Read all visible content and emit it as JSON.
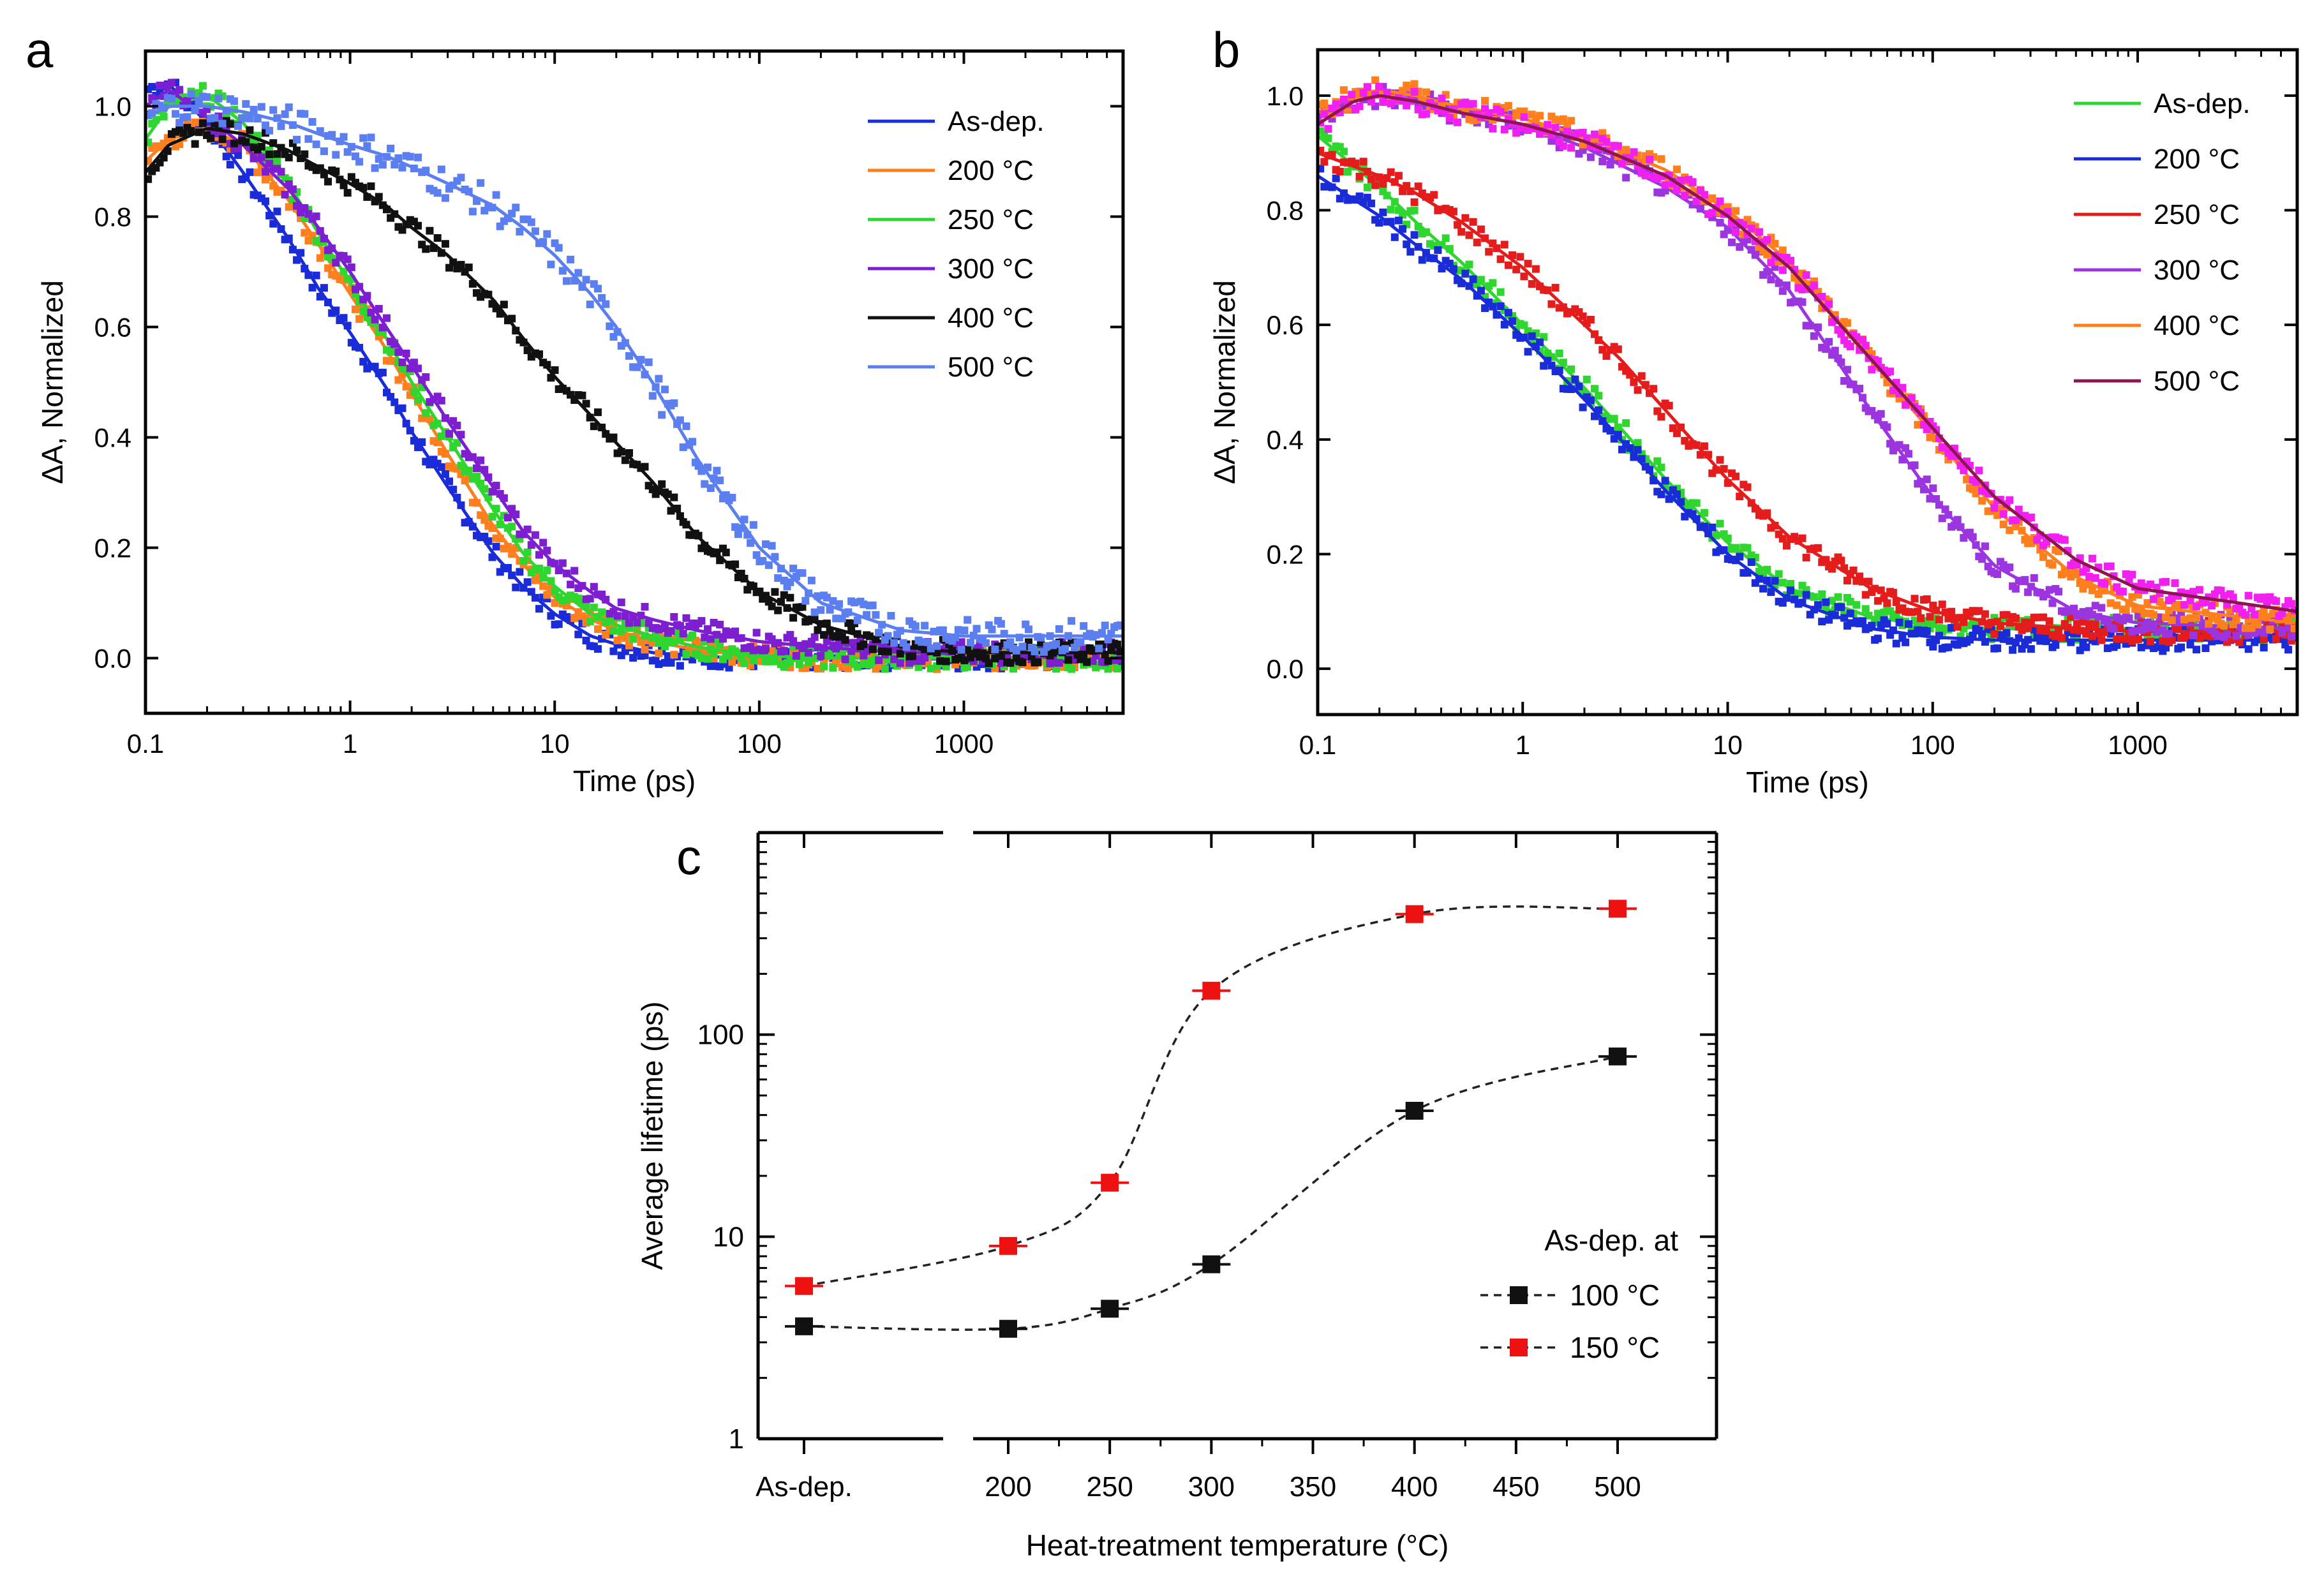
{
  "panels": {
    "a": "a",
    "b": "b",
    "c": "c"
  },
  "colors": {
    "blue": "#1a2bd8",
    "orange": "#ff7f1e",
    "green": "#2fd62f",
    "purple": "#7d1ed0",
    "black": "#111111",
    "lightblue": "#5b7ff0",
    "red": "#e51c1c",
    "violet": "#9b35e0",
    "maroon": "#8e1650",
    "magenta": "#f020f0",
    "square_black": "#111111",
    "square_red": "#ee1111"
  },
  "chart_data": [
    {
      "id": "a",
      "type": "line",
      "xscale": "log",
      "xlabel": "Time (ps)",
      "ylabel": "ΔA, Normalized",
      "xlim": [
        0.1,
        6000
      ],
      "ylim": [
        -0.1,
        1.1
      ],
      "xticks": [
        "0.1",
        "1",
        "10",
        "100",
        "1000"
      ],
      "yticks": [
        "0.0",
        "0.2",
        "0.4",
        "0.6",
        "0.8",
        "1.0"
      ],
      "legend": [
        "As-dep.",
        "200 °C",
        "250 °C",
        "300 °C",
        "400 °C",
        "500 °C"
      ],
      "series": [
        {
          "name": "As-dep.",
          "color": "blue",
          "t": [
            0.1,
            0.13,
            0.2,
            0.3,
            0.5,
            0.7,
            1,
            1.5,
            2,
            3,
            5,
            7,
            10,
            15,
            20,
            30,
            50,
            100,
            200,
            500,
            1000,
            6000
          ],
          "fit": [
            1.03,
            1.04,
            0.97,
            0.88,
            0.76,
            0.67,
            0.59,
            0.49,
            0.41,
            0.31,
            0.19,
            0.13,
            0.08,
            0.04,
            0.025,
            0.01,
            0.003,
            0,
            0,
            0,
            0,
            0
          ],
          "noise": 0.02
        },
        {
          "name": "200 °C",
          "color": "orange",
          "t": [
            0.1,
            0.13,
            0.2,
            0.3,
            0.5,
            0.7,
            1,
            1.5,
            2,
            3,
            5,
            7,
            10,
            15,
            20,
            30,
            50,
            100,
            200,
            500,
            1000,
            6000
          ],
          "fit": [
            0.9,
            0.94,
            0.96,
            0.93,
            0.83,
            0.75,
            0.66,
            0.56,
            0.48,
            0.37,
            0.24,
            0.17,
            0.11,
            0.07,
            0.05,
            0.03,
            0.015,
            0.005,
            0,
            0,
            0,
            0
          ],
          "noise": 0.02
        },
        {
          "name": "250 °C",
          "color": "green",
          "t": [
            0.1,
            0.13,
            0.2,
            0.3,
            0.5,
            0.7,
            1,
            1.5,
            2,
            3,
            5,
            7,
            10,
            15,
            20,
            30,
            50,
            100,
            200,
            500,
            1000,
            6000
          ],
          "fit": [
            0.94,
            1.0,
            1.02,
            0.97,
            0.86,
            0.77,
            0.68,
            0.58,
            0.5,
            0.4,
            0.27,
            0.19,
            0.13,
            0.08,
            0.06,
            0.04,
            0.02,
            0.005,
            0,
            0,
            0,
            0
          ],
          "noise": 0.02
        },
        {
          "name": "300 °C",
          "color": "purple",
          "t": [
            0.1,
            0.13,
            0.2,
            0.3,
            0.5,
            0.7,
            1,
            1.5,
            2,
            3,
            5,
            7,
            10,
            15,
            20,
            30,
            50,
            100,
            200,
            500,
            1000,
            6000
          ],
          "fit": [
            1.0,
            1.03,
            0.98,
            0.93,
            0.85,
            0.78,
            0.7,
            0.6,
            0.53,
            0.43,
            0.31,
            0.23,
            0.17,
            0.12,
            0.09,
            0.07,
            0.05,
            0.03,
            0.02,
            0.01,
            0.01,
            0.01
          ],
          "noise": 0.02
        },
        {
          "name": "400 °C",
          "color": "black",
          "t": [
            0.1,
            0.13,
            0.2,
            0.3,
            0.5,
            0.7,
            1,
            1.5,
            2,
            3,
            5,
            7,
            10,
            15,
            20,
            30,
            50,
            100,
            200,
            500,
            1000,
            6000
          ],
          "fit": [
            0.88,
            0.93,
            0.96,
            0.95,
            0.92,
            0.89,
            0.86,
            0.82,
            0.78,
            0.73,
            0.65,
            0.58,
            0.51,
            0.44,
            0.39,
            0.32,
            0.22,
            0.12,
            0.06,
            0.02,
            0.01,
            0.01
          ],
          "noise": 0.02
        },
        {
          "name": "500 °C",
          "color": "lightblue",
          "t": [
            0.1,
            0.13,
            0.2,
            0.3,
            0.5,
            0.7,
            1,
            1.5,
            2,
            3,
            5,
            7,
            10,
            15,
            20,
            30,
            50,
            100,
            200,
            500,
            1000,
            6000
          ],
          "fit": [
            0.98,
            1.0,
            1.0,
            0.99,
            0.97,
            0.95,
            0.93,
            0.91,
            0.89,
            0.86,
            0.82,
            0.78,
            0.73,
            0.66,
            0.6,
            0.5,
            0.36,
            0.2,
            0.1,
            0.05,
            0.04,
            0.04
          ],
          "noise": 0.03
        }
      ]
    },
    {
      "id": "b",
      "type": "line",
      "xscale": "log",
      "xlabel": "Time (ps)",
      "ylabel": "ΔA, Normalized",
      "xlim": [
        0.1,
        6000
      ],
      "ylim": [
        -0.08,
        1.08
      ],
      "xticks": [
        "0.1",
        "1",
        "10",
        "100",
        "1000"
      ],
      "yticks": [
        "0.0",
        "0.2",
        "0.4",
        "0.6",
        "0.8",
        "1.0"
      ],
      "legend": [
        "As-dep.",
        "200 °C",
        "250 °C",
        "300 °C",
        "400 °C",
        "500 °C"
      ],
      "series": [
        {
          "name": "As-dep.",
          "color": "green",
          "t": [
            0.1,
            0.2,
            0.3,
            0.5,
            1,
            2,
            3,
            5,
            10,
            20,
            50,
            100,
            200,
            500,
            1000,
            6000
          ],
          "fit": [
            0.93,
            0.84,
            0.78,
            0.71,
            0.6,
            0.49,
            0.42,
            0.33,
            0.22,
            0.14,
            0.09,
            0.075,
            0.07,
            0.07,
            0.07,
            0.07
          ],
          "noise": 0.02
        },
        {
          "name": "200 °C",
          "color": "blue",
          "t": [
            0.1,
            0.2,
            0.3,
            0.5,
            1,
            2,
            3,
            5,
            10,
            20,
            50,
            100,
            200,
            500,
            1000,
            6000
          ],
          "fit": [
            0.86,
            0.79,
            0.74,
            0.68,
            0.58,
            0.47,
            0.4,
            0.31,
            0.2,
            0.12,
            0.07,
            0.055,
            0.05,
            0.05,
            0.05,
            0.05
          ],
          "noise": 0.02
        },
        {
          "name": "250 °C",
          "color": "red",
          "t": [
            0.1,
            0.2,
            0.3,
            0.5,
            1,
            2,
            3,
            5,
            10,
            20,
            50,
            100,
            200,
            500,
            1000,
            6000
          ],
          "fit": [
            0.9,
            0.86,
            0.83,
            0.78,
            0.7,
            0.6,
            0.54,
            0.45,
            0.33,
            0.23,
            0.14,
            0.1,
            0.08,
            0.07,
            0.065,
            0.065
          ],
          "noise": 0.02
        },
        {
          "name": "300 °C",
          "color": "violet",
          "t": [
            0.1,
            0.15,
            0.2,
            0.3,
            0.5,
            1,
            2,
            5,
            10,
            20,
            50,
            100,
            200,
            500,
            1000,
            6000
          ],
          "fit": [
            0.96,
            0.99,
            1.0,
            0.99,
            0.97,
            0.95,
            0.91,
            0.84,
            0.77,
            0.66,
            0.45,
            0.3,
            0.18,
            0.1,
            0.08,
            0.07
          ],
          "noise": 0.02
        },
        {
          "name": "400 °C",
          "color": "orange",
          "t": [
            0.1,
            0.15,
            0.2,
            0.3,
            0.5,
            1,
            2,
            5,
            10,
            20,
            50,
            100,
            200,
            500,
            1000,
            6000
          ],
          "fit": [
            0.97,
            1.0,
            1.01,
            1.0,
            0.98,
            0.96,
            0.93,
            0.87,
            0.8,
            0.71,
            0.54,
            0.41,
            0.28,
            0.16,
            0.11,
            0.08
          ],
          "noise": 0.02
        },
        {
          "name": "500 °C",
          "color": "maroon",
          "t": [
            0.1,
            0.15,
            0.2,
            0.3,
            0.5,
            1,
            2,
            5,
            10,
            20,
            50,
            100,
            200,
            500,
            1000,
            6000
          ],
          "fit": [
            0.95,
            0.99,
            1.0,
            0.99,
            0.97,
            0.95,
            0.92,
            0.86,
            0.79,
            0.7,
            0.54,
            0.42,
            0.3,
            0.19,
            0.14,
            0.1
          ],
          "noise": 0.02,
          "dots": "magenta"
        }
      ]
    },
    {
      "id": "c",
      "type": "scatter",
      "yscale": "log",
      "xlabel": "Heat-treatment temperature (°C)",
      "ylabel": "Average lifetime (ps)",
      "ylim": [
        1,
        1000
      ],
      "yticks": [
        "1",
        "10",
        "100"
      ],
      "xticks": [
        "As-dep.",
        "200",
        "250",
        "300",
        "350",
        "400",
        "450",
        "500"
      ],
      "legend_title": "As-dep. at",
      "legend": [
        "100 °C",
        "150 °C"
      ],
      "categories": [
        "As-dep.",
        "200",
        "250",
        "300",
        "400",
        "500"
      ],
      "series": [
        {
          "name": "100 °C",
          "color": "square_black",
          "values": [
            3.6,
            3.5,
            4.4,
            7.3,
            42,
            78
          ]
        },
        {
          "name": "150 °C",
          "color": "square_red",
          "values": [
            5.7,
            9.0,
            18.5,
            165,
            395,
            420
          ]
        }
      ]
    }
  ]
}
